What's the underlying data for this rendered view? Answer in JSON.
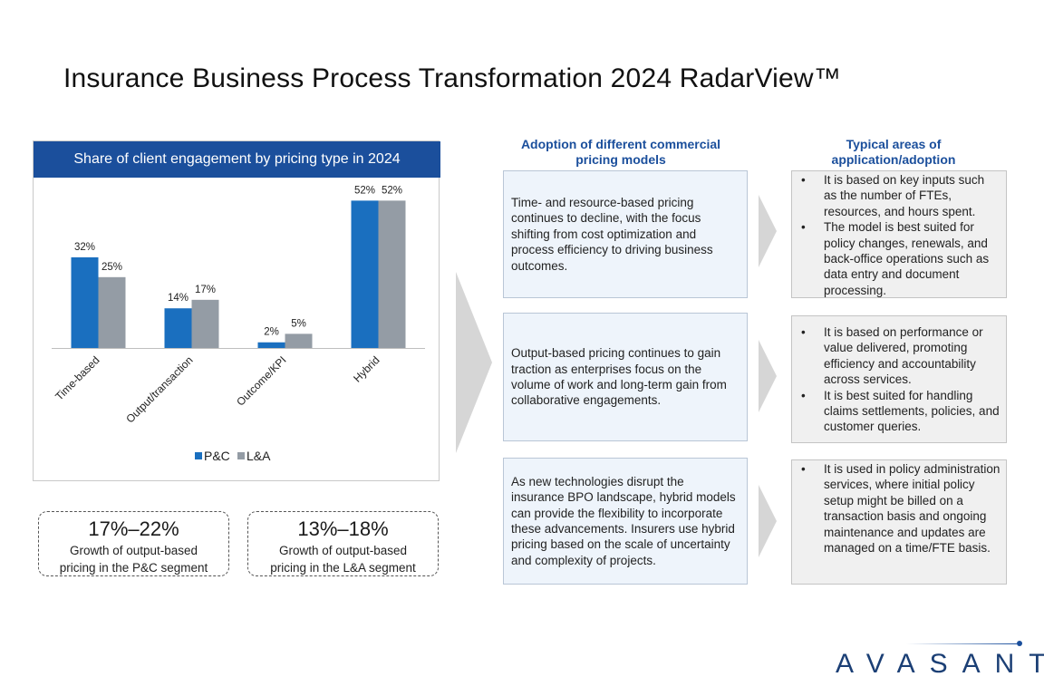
{
  "title": "Insurance Business Process Transformation 2024 RadarView™",
  "chart_data": {
    "type": "bar",
    "title": "Share of client engagement by pricing type in 2024",
    "categories": [
      "Time-based",
      "Output/transaction",
      "Outcome/KPI",
      "Hybrid"
    ],
    "series": [
      {
        "name": "P&C",
        "color": "#1a6fbf",
        "values": [
          32,
          14,
          2,
          52
        ],
        "labels": [
          "32%",
          "14%",
          "2%",
          "52%"
        ]
      },
      {
        "name": "L&A",
        "color": "#949ca5",
        "values": [
          25,
          17,
          5,
          52
        ],
        "labels": [
          "25%",
          "17%",
          "5%",
          "52%"
        ]
      }
    ],
    "ylim": [
      0,
      55
    ],
    "xlabel": "",
    "ylabel": "",
    "legend": "bottom-center"
  },
  "stats": [
    {
      "value": "17%–22%",
      "line1": "Growth of output-based",
      "line2": "pricing in the P&C segment"
    },
    {
      "value": "13%–18%",
      "line1": "Growth of output-based",
      "line2": "pricing in the L&A segment"
    }
  ],
  "columns": {
    "adoption_line1": "Adoption of different commercial",
    "adoption_line2": "pricing models",
    "areas_line1": "Typical areas of",
    "areas_line2": "application/adoption"
  },
  "rows": [
    {
      "adoption": "Time- and resource-based pricing continues to decline, with the focus shifting from cost optimization and process efficiency to driving business outcomes.",
      "areas": [
        "It is based on key inputs such as the number of FTEs, resources, and hours spent.",
        "The model is best suited for policy changes, renewals, and back-office operations such as data entry and document processing."
      ]
    },
    {
      "adoption": "Output-based pricing continues to gain traction as enterprises focus on the volume of work and long-term gain from collaborative engagements.",
      "areas": [
        "It is based on performance or value delivered, promoting efficiency and accountability across services.",
        "It is best suited for handling claims settlements, policies, and customer queries."
      ]
    },
    {
      "adoption": "As new technologies disrupt the insurance BPO landscape, hybrid models can provide the flexibility to incorporate these advancements. Insurers use hybrid pricing based on the scale of uncertainty and complexity of projects.",
      "areas": [
        "It is used in policy administration services, where initial policy setup might be billed on a transaction basis and ongoing maintenance and updates are managed on a time/FTE basis."
      ]
    }
  ],
  "brand": {
    "name": "AVASANT",
    "accent": "#1b4f9c"
  }
}
